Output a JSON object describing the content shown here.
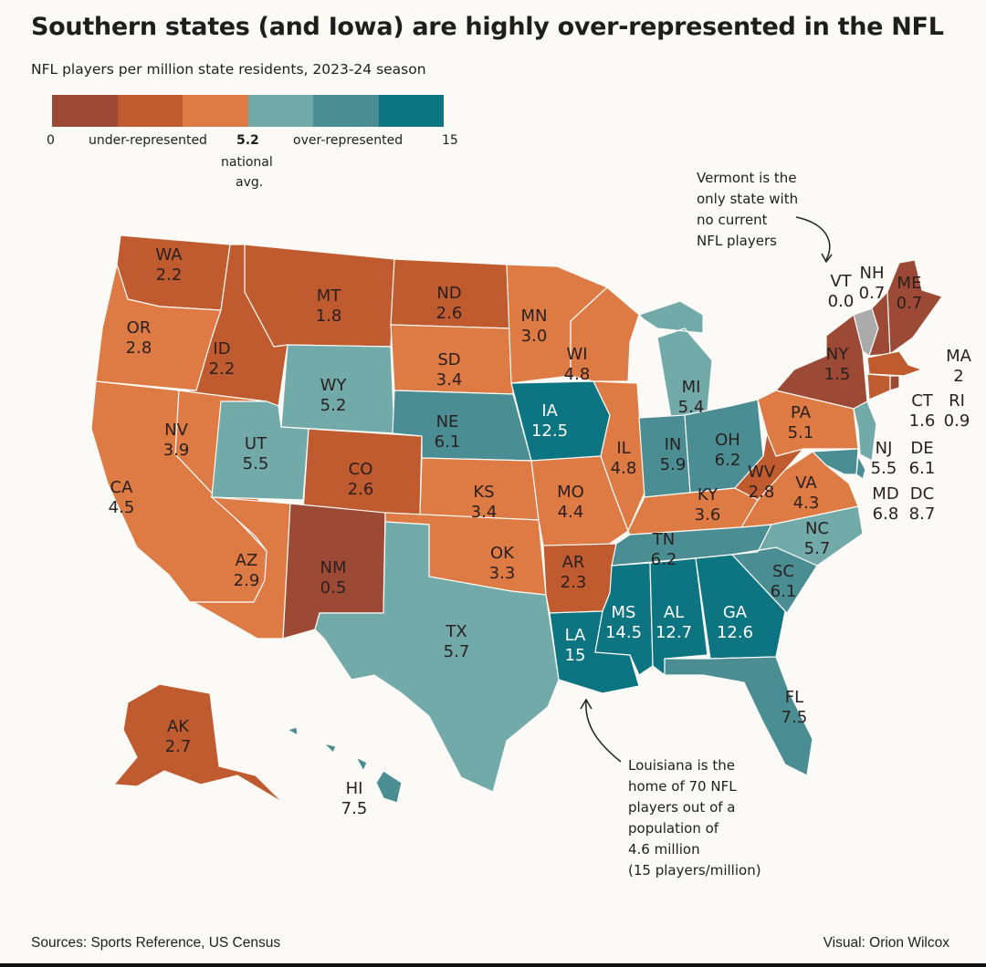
{
  "title": "Southern states (and Iowa) are highly over-represented in the NFL",
  "subtitle": "NFL players per million state residents, 2023-24  season",
  "legend": {
    "colors": [
      "#9c4a35",
      "#c05b30",
      "#de7b45",
      "#72aaa9",
      "#4a8e94",
      "#0d7482"
    ],
    "no_data_color": "#ababab",
    "min_label": "0",
    "under_label": "under-represented",
    "mid_label": "5.2",
    "mid_caption_1": "national",
    "mid_caption_2": "avg.",
    "over_label": "over-represented",
    "max_label": "15"
  },
  "annotations": {
    "vermont": "Vermont is the\nonly state with\nno current\nNFL players",
    "louisiana": "Louisiana is the\nhome of 70 NFL\nplayers out of a\npopulation of\n4.6 million\n(15 players/million)"
  },
  "footer": {
    "sources": "Sources: Sports Reference, US Census",
    "credit": "Visual: Orion Wilcox"
  },
  "states": [
    {
      "abbr": "WA",
      "value": "2.2",
      "bin": 1
    },
    {
      "abbr": "OR",
      "value": "2.8",
      "bin": 2
    },
    {
      "abbr": "CA",
      "value": "4.5",
      "bin": 2
    },
    {
      "abbr": "NV",
      "value": "3.9",
      "bin": 2
    },
    {
      "abbr": "ID",
      "value": "2.2",
      "bin": 1
    },
    {
      "abbr": "MT",
      "value": "1.8",
      "bin": 1
    },
    {
      "abbr": "WY",
      "value": "5.2",
      "bin": 3
    },
    {
      "abbr": "UT",
      "value": "5.5",
      "bin": 3
    },
    {
      "abbr": "CO",
      "value": "2.6",
      "bin": 1
    },
    {
      "abbr": "AZ",
      "value": "2.9",
      "bin": 2
    },
    {
      "abbr": "NM",
      "value": "0.5",
      "bin": 0
    },
    {
      "abbr": "ND",
      "value": "2.6",
      "bin": 1
    },
    {
      "abbr": "SD",
      "value": "3.4",
      "bin": 2
    },
    {
      "abbr": "NE",
      "value": "6.1",
      "bin": 4
    },
    {
      "abbr": "KS",
      "value": "3.4",
      "bin": 2
    },
    {
      "abbr": "OK",
      "value": "3.3",
      "bin": 2
    },
    {
      "abbr": "TX",
      "value": "5.7",
      "bin": 3
    },
    {
      "abbr": "MN",
      "value": "3.0",
      "bin": 2
    },
    {
      "abbr": "IA",
      "value": "12.5",
      "bin": 5
    },
    {
      "abbr": "MO",
      "value": "4.4",
      "bin": 2
    },
    {
      "abbr": "AR",
      "value": "2.3",
      "bin": 1
    },
    {
      "abbr": "LA",
      "value": "15",
      "bin": 5
    },
    {
      "abbr": "WI",
      "value": "4.8",
      "bin": 2
    },
    {
      "abbr": "IL",
      "value": "4.8",
      "bin": 2
    },
    {
      "abbr": "MI",
      "value": "5.4",
      "bin": 3
    },
    {
      "abbr": "IN",
      "value": "5.9",
      "bin": 4
    },
    {
      "abbr": "OH",
      "value": "6.2",
      "bin": 4
    },
    {
      "abbr": "KY",
      "value": "3.6",
      "bin": 2
    },
    {
      "abbr": "TN",
      "value": "6.2",
      "bin": 4
    },
    {
      "abbr": "MS",
      "value": "14.5",
      "bin": 5
    },
    {
      "abbr": "AL",
      "value": "12.7",
      "bin": 5
    },
    {
      "abbr": "GA",
      "value": "12.6",
      "bin": 5
    },
    {
      "abbr": "FL",
      "value": "7.5",
      "bin": 4
    },
    {
      "abbr": "SC",
      "value": "6.1",
      "bin": 4
    },
    {
      "abbr": "NC",
      "value": "5.7",
      "bin": 3
    },
    {
      "abbr": "VA",
      "value": "4.3",
      "bin": 2
    },
    {
      "abbr": "WV",
      "value": "2.8",
      "bin": 1
    },
    {
      "abbr": "PA",
      "value": "5.1",
      "bin": 2
    },
    {
      "abbr": "NY",
      "value": "1.5",
      "bin": 0
    },
    {
      "abbr": "VT",
      "value": "0.0",
      "bin": -1
    },
    {
      "abbr": "NH",
      "value": "0.7",
      "bin": 0
    },
    {
      "abbr": "ME",
      "value": "0.7",
      "bin": 0
    },
    {
      "abbr": "MA",
      "value": "2",
      "bin": 1
    },
    {
      "abbr": "CT",
      "value": "1.6",
      "bin": 1
    },
    {
      "abbr": "RI",
      "value": "0.9",
      "bin": 0
    },
    {
      "abbr": "NJ",
      "value": "5.5",
      "bin": 3
    },
    {
      "abbr": "DE",
      "value": "6.1",
      "bin": 4
    },
    {
      "abbr": "MD",
      "value": "6.8",
      "bin": 4
    },
    {
      "abbr": "DC",
      "value": "8.7",
      "bin": 4
    },
    {
      "abbr": "AK",
      "value": "2.7",
      "bin": 1
    },
    {
      "abbr": "HI",
      "value": "7.5",
      "bin": 4
    }
  ]
}
